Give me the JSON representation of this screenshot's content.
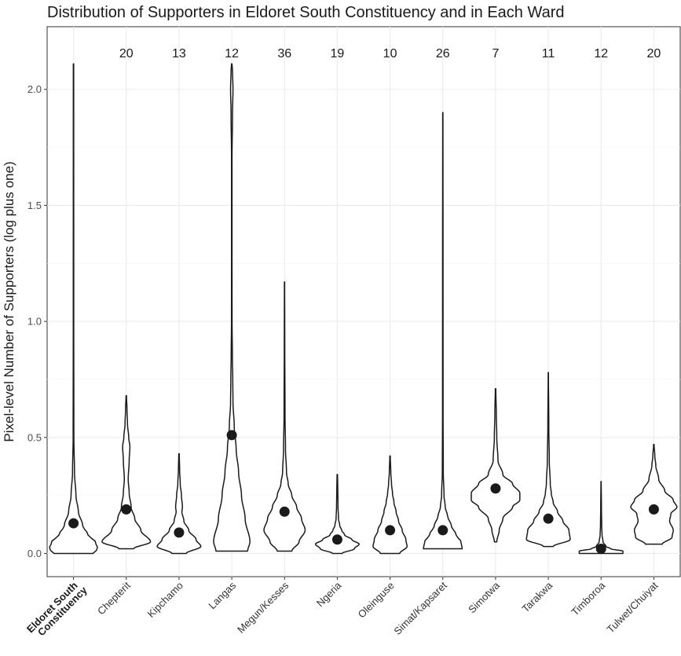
{
  "chart_data": {
    "type": "violin",
    "title": "Distribution of Supporters in Eldoret South Constituency and in Each Ward",
    "xlabel": "",
    "ylabel": "Pixel-level Number of Supporters (log plus one)",
    "ylim": [
      -0.1,
      2.27
    ],
    "yticks": [
      0.0,
      0.5,
      1.0,
      1.5,
      2.0
    ],
    "ytick_labels": [
      "0.0",
      "0.5",
      "1.0",
      "1.5",
      "2.0"
    ],
    "grid": true,
    "categories": [
      {
        "label": "Eldoret South",
        "label2": "Constituency",
        "bold": true,
        "count": "",
        "mean": 0.13,
        "min": 0.0,
        "max": 2.11,
        "profile": [
          [
            0.0,
            0.8
          ],
          [
            0.02,
            1.0
          ],
          [
            0.05,
            0.9
          ],
          [
            0.08,
            0.6
          ],
          [
            0.12,
            0.38
          ],
          [
            0.18,
            0.2
          ],
          [
            0.25,
            0.1
          ],
          [
            0.35,
            0.04
          ],
          [
            0.5,
            0.015
          ],
          [
            1.0,
            0.01
          ],
          [
            2.11,
            0.008
          ]
        ]
      },
      {
        "label": "Chepterit",
        "label2": "",
        "bold": false,
        "count": "20",
        "mean": 0.19,
        "min": 0.02,
        "max": 0.68,
        "profile": [
          [
            0.02,
            0.3
          ],
          [
            0.05,
            1.0
          ],
          [
            0.1,
            0.6
          ],
          [
            0.15,
            0.35
          ],
          [
            0.2,
            0.2
          ],
          [
            0.26,
            0.12
          ],
          [
            0.32,
            0.08
          ],
          [
            0.4,
            0.12
          ],
          [
            0.46,
            0.15
          ],
          [
            0.5,
            0.1
          ],
          [
            0.56,
            0.05
          ],
          [
            0.62,
            0.03
          ],
          [
            0.68,
            0.01
          ]
        ]
      },
      {
        "label": "Kipchamo",
        "label2": "",
        "bold": false,
        "count": "13",
        "mean": 0.09,
        "min": 0.0,
        "max": 0.43,
        "profile": [
          [
            0.0,
            0.3
          ],
          [
            0.03,
            0.9
          ],
          [
            0.06,
            0.7
          ],
          [
            0.1,
            0.4
          ],
          [
            0.14,
            0.2
          ],
          [
            0.18,
            0.12
          ],
          [
            0.2,
            0.14
          ],
          [
            0.25,
            0.1
          ],
          [
            0.3,
            0.05
          ],
          [
            0.36,
            0.025
          ],
          [
            0.43,
            0.01
          ]
        ]
      },
      {
        "label": "Langas",
        "label2": "",
        "bold": false,
        "count": "12",
        "mean": 0.51,
        "min": 0.01,
        "max": 2.11,
        "profile": [
          [
            0.01,
            0.65
          ],
          [
            0.05,
            0.75
          ],
          [
            0.15,
            0.55
          ],
          [
            0.25,
            0.4
          ],
          [
            0.35,
            0.28
          ],
          [
            0.45,
            0.18
          ],
          [
            0.55,
            0.1
          ],
          [
            0.65,
            0.05
          ],
          [
            0.75,
            0.04
          ],
          [
            0.85,
            0.025
          ],
          [
            1.0,
            0.012
          ],
          [
            1.3,
            0.01
          ],
          [
            1.7,
            0.01
          ],
          [
            1.9,
            0.03
          ],
          [
            2.0,
            0.05
          ],
          [
            2.08,
            0.03
          ],
          [
            2.11,
            0.01
          ]
        ]
      },
      {
        "label": "Megun/Kesses",
        "label2": "",
        "bold": false,
        "count": "36",
        "mean": 0.18,
        "min": 0.01,
        "max": 1.17,
        "profile": [
          [
            0.01,
            0.3
          ],
          [
            0.05,
            0.6
          ],
          [
            0.1,
            0.85
          ],
          [
            0.15,
            0.7
          ],
          [
            0.2,
            0.5
          ],
          [
            0.25,
            0.3
          ],
          [
            0.3,
            0.15
          ],
          [
            0.35,
            0.08
          ],
          [
            0.45,
            0.04
          ],
          [
            0.6,
            0.02
          ],
          [
            0.9,
            0.01
          ],
          [
            1.17,
            0.005
          ]
        ]
      },
      {
        "label": "Ngeria",
        "label2": "",
        "bold": false,
        "count": "19",
        "mean": 0.06,
        "min": 0.0,
        "max": 0.34,
        "profile": [
          [
            0.0,
            0.2
          ],
          [
            0.02,
            0.7
          ],
          [
            0.04,
            0.9
          ],
          [
            0.06,
            0.6
          ],
          [
            0.08,
            0.3
          ],
          [
            0.1,
            0.18
          ],
          [
            0.12,
            0.1
          ],
          [
            0.15,
            0.05
          ],
          [
            0.2,
            0.03
          ],
          [
            0.28,
            0.02
          ],
          [
            0.34,
            0.01
          ]
        ]
      },
      {
        "label": "Oleinguse",
        "label2": "",
        "bold": false,
        "count": "10",
        "mean": 0.1,
        "min": 0.0,
        "max": 0.42,
        "profile": [
          [
            0.0,
            0.4
          ],
          [
            0.03,
            0.7
          ],
          [
            0.06,
            0.65
          ],
          [
            0.1,
            0.5
          ],
          [
            0.14,
            0.35
          ],
          [
            0.18,
            0.25
          ],
          [
            0.22,
            0.16
          ],
          [
            0.26,
            0.1
          ],
          [
            0.3,
            0.06
          ],
          [
            0.35,
            0.03
          ],
          [
            0.42,
            0.01
          ]
        ]
      },
      {
        "label": "Simat/Kapsaret",
        "label2": "",
        "bold": false,
        "count": "26",
        "mean": 0.1,
        "min": 0.02,
        "max": 1.9,
        "profile": [
          [
            0.02,
            0.8
          ],
          [
            0.05,
            0.75
          ],
          [
            0.08,
            0.55
          ],
          [
            0.12,
            0.35
          ],
          [
            0.16,
            0.2
          ],
          [
            0.2,
            0.1
          ],
          [
            0.25,
            0.05
          ],
          [
            0.35,
            0.02
          ],
          [
            0.6,
            0.012
          ],
          [
            1.2,
            0.01
          ],
          [
            1.9,
            0.005
          ]
        ]
      },
      {
        "label": "Simotwa",
        "label2": "",
        "bold": false,
        "count": "7",
        "mean": 0.28,
        "min": 0.05,
        "max": 0.71,
        "profile": [
          [
            0.05,
            0.05
          ],
          [
            0.1,
            0.15
          ],
          [
            0.15,
            0.3
          ],
          [
            0.2,
            0.7
          ],
          [
            0.23,
            1.0
          ],
          [
            0.26,
            1.0
          ],
          [
            0.3,
            0.7
          ],
          [
            0.34,
            0.3
          ],
          [
            0.4,
            0.1
          ],
          [
            0.5,
            0.05
          ],
          [
            0.6,
            0.03
          ],
          [
            0.71,
            0.01
          ]
        ]
      },
      {
        "label": "Tarakwa",
        "label2": "",
        "bold": false,
        "count": "11",
        "mean": 0.15,
        "min": 0.03,
        "max": 0.78,
        "profile": [
          [
            0.03,
            0.2
          ],
          [
            0.06,
            0.9
          ],
          [
            0.1,
            0.85
          ],
          [
            0.14,
            0.6
          ],
          [
            0.18,
            0.38
          ],
          [
            0.22,
            0.2
          ],
          [
            0.26,
            0.12
          ],
          [
            0.3,
            0.08
          ],
          [
            0.4,
            0.04
          ],
          [
            0.55,
            0.02
          ],
          [
            0.78,
            0.005
          ]
        ]
      },
      {
        "label": "Timboroa",
        "label2": "",
        "bold": false,
        "count": "12",
        "mean": 0.02,
        "min": 0.0,
        "max": 0.31,
        "profile": [
          [
            0.0,
            0.9
          ],
          [
            0.01,
            0.9
          ],
          [
            0.02,
            0.4
          ],
          [
            0.03,
            0.2
          ],
          [
            0.05,
            0.08
          ],
          [
            0.08,
            0.04
          ],
          [
            0.12,
            0.025
          ],
          [
            0.2,
            0.015
          ],
          [
            0.31,
            0.005
          ]
        ]
      },
      {
        "label": "Tulwet/Chuiyat",
        "label2": "",
        "bold": false,
        "count": "20",
        "mean": 0.19,
        "min": 0.04,
        "max": 0.47,
        "profile": [
          [
            0.04,
            0.35
          ],
          [
            0.07,
            0.75
          ],
          [
            0.1,
            0.8
          ],
          [
            0.14,
            0.65
          ],
          [
            0.17,
            0.7
          ],
          [
            0.2,
            0.95
          ],
          [
            0.23,
            0.8
          ],
          [
            0.27,
            0.45
          ],
          [
            0.32,
            0.2
          ],
          [
            0.38,
            0.08
          ],
          [
            0.42,
            0.04
          ],
          [
            0.47,
            0.01
          ]
        ]
      }
    ]
  }
}
